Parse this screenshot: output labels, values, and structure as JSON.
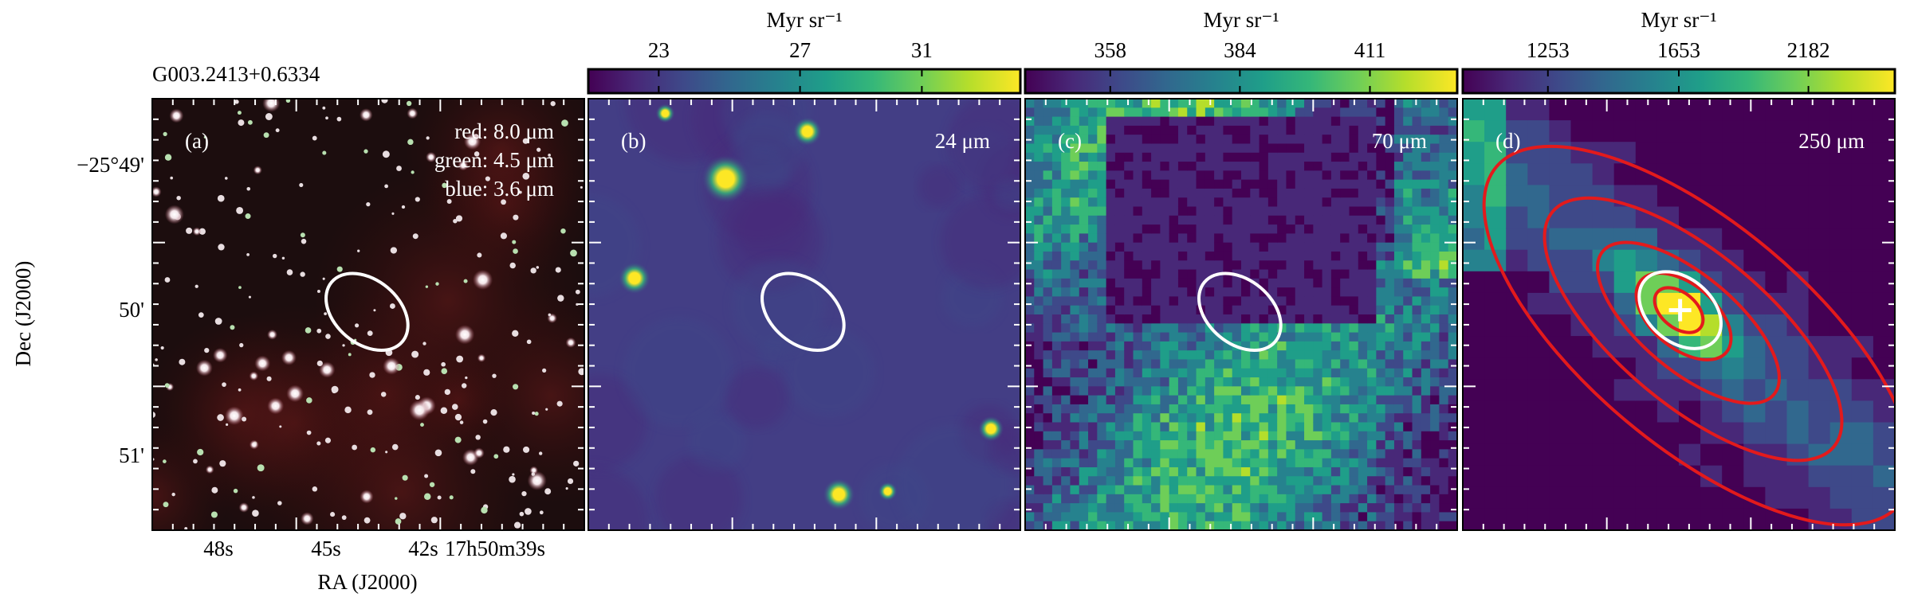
{
  "figure": {
    "title": "G003.2413+0.6334",
    "y_axis": {
      "label": "Dec (J2000)",
      "ticks": [
        "−25°49'",
        "50'",
        "51'"
      ]
    },
    "x_axis": {
      "label": "RA (J2000)",
      "ticks": [
        "48s",
        "45s",
        "42s",
        "17h50m39s"
      ]
    },
    "panels": [
      {
        "label": "(a)",
        "annotations": [
          "red: 8.0 μm",
          "green: 4.5 μm",
          "blue: 3.6 μm"
        ]
      },
      {
        "label": "(b)",
        "annotations": [
          "24 μm"
        ],
        "colorbar": {
          "label": "Myr sr⁻¹",
          "ticks": [
            23,
            27,
            31
          ]
        }
      },
      {
        "label": "(c)",
        "annotations": [
          "70 μm"
        ],
        "colorbar": {
          "label": "Myr sr⁻¹",
          "ticks": [
            358,
            384,
            411
          ]
        }
      },
      {
        "label": "(d)",
        "annotations": [
          "250 μm"
        ],
        "colorbar": {
          "label": "Myr sr⁻¹",
          "ticks": [
            1253,
            1653,
            2182
          ]
        }
      }
    ]
  }
}
